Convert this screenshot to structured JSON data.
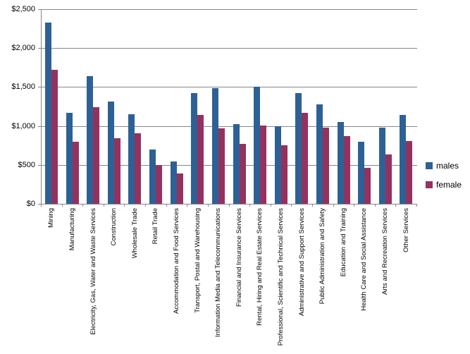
{
  "chart_data": {
    "type": "bar",
    "title": "",
    "xlabel": "",
    "ylabel": "",
    "categories": [
      "Mining",
      "Manufacturing",
      "Electricity, Gas, Water and Waste Services",
      "Construction",
      "Wholesale Trade",
      "Retail Trade",
      "Accommodation and Food Services",
      "Transport, Postal and Warehousing",
      "Information Media and Telecommunications",
      "Financial and Insurance Services",
      "Rental, Hiring and Real Estate Services",
      "Professional, Scientific and Technical Services",
      "Administrative and Support Services",
      "Public Administration and Safety",
      "Education and Training",
      "Health Care and Social Assistance",
      "Arts and Recreation Services",
      "Other Services"
    ],
    "series": [
      {
        "name": "males",
        "color": "#2D6196",
        "values": [
          2330,
          1165,
          1640,
          1315,
          1150,
          695,
          545,
          1425,
          1490,
          1020,
          1500,
          995,
          1425,
          1280,
          1055,
          800,
          975,
          1140
        ]
      },
      {
        "name": "female",
        "color": "#94325F",
        "values": [
          1720,
          795,
          1245,
          840,
          910,
          495,
          390,
          1140,
          965,
          770,
          1010,
          755,
          1170,
          975,
          870,
          465,
          630,
          810
        ]
      }
    ],
    "ylim": [
      0,
      2500
    ],
    "ytick_step": 500,
    "ytick_labels": [
      "$0",
      "$500",
      "$1,000",
      "$1,500",
      "$2,000",
      "$2,500"
    ],
    "grid": true,
    "legend_position": "right",
    "axis_color": "#878787",
    "grid_color": "#878787"
  }
}
